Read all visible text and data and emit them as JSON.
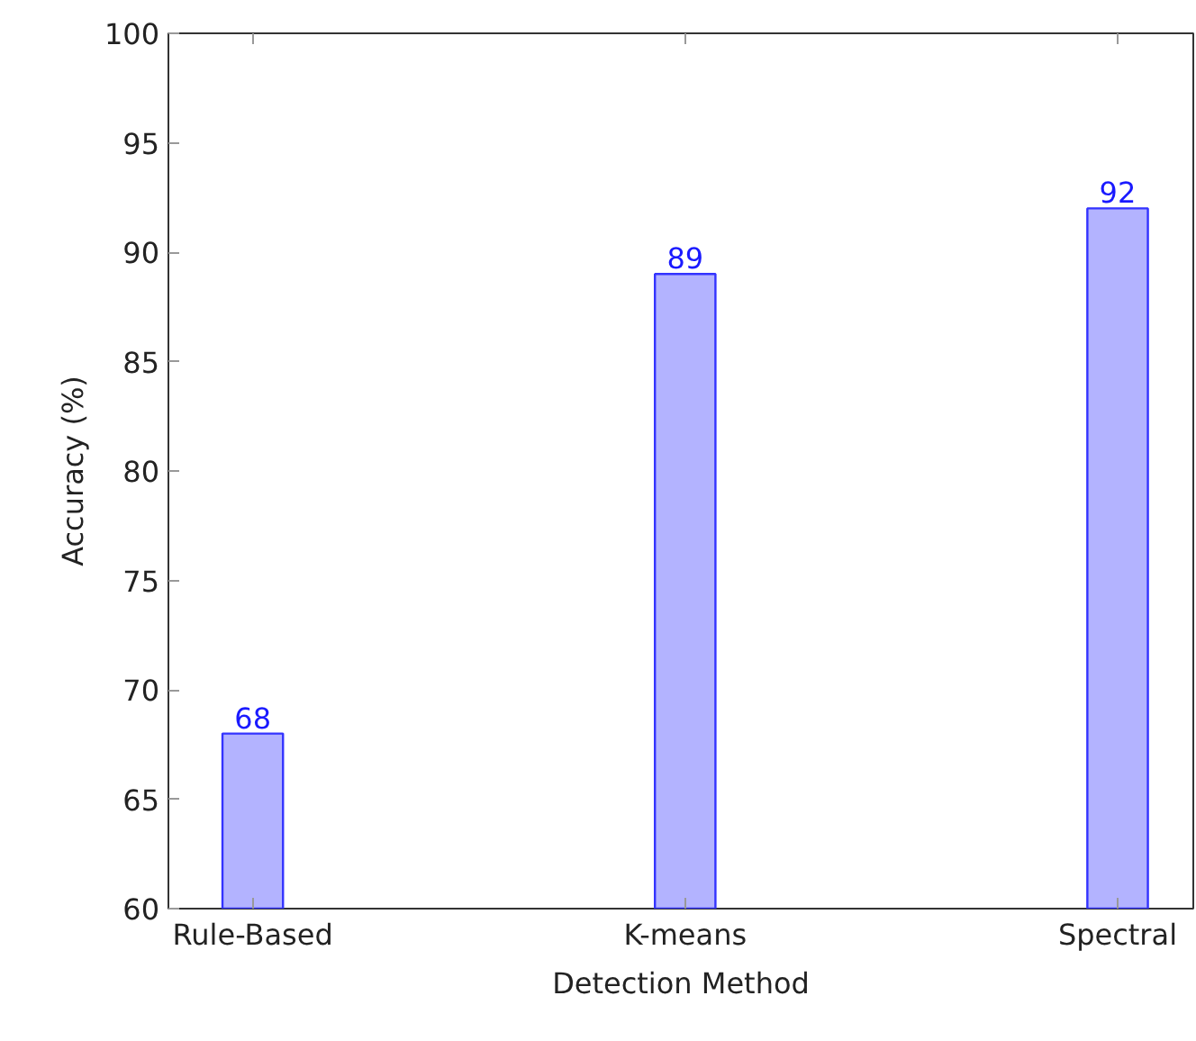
{
  "chart_data": {
    "type": "bar",
    "xlabel": "Detection Method",
    "ylabel": "Accuracy (%)",
    "categories": [
      "Rule-Based",
      "K-means",
      "Spectral"
    ],
    "values": [
      68,
      89,
      92
    ],
    "color": "#b3b3ff",
    "ylim": [
      60,
      100
    ],
    "yticks": [
      60,
      65,
      70,
      75,
      80,
      85,
      90,
      95,
      100
    ],
    "grid": false,
    "data_labels": true
  }
}
